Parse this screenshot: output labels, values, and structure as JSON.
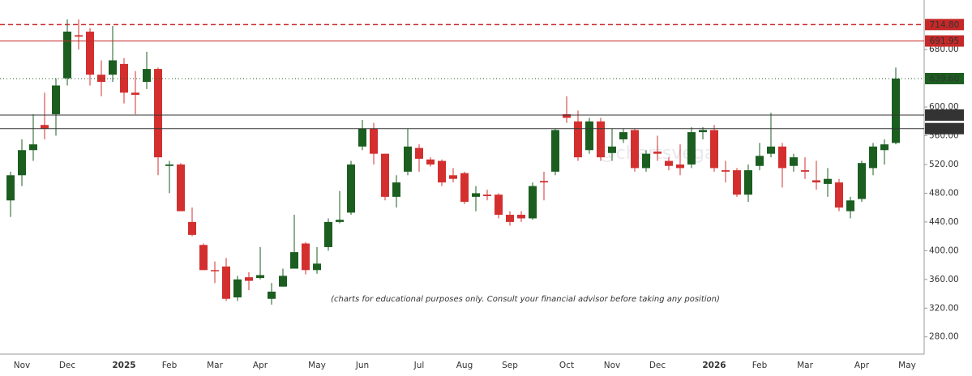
{
  "chart_data": {
    "type": "candlestick",
    "watermark": "@chartsvega",
    "annotation": "(charts for educational purposes only. Consult your financial advisor before taking any position)",
    "categories": [
      null,
      "Nov",
      null,
      null,
      null,
      "Dec",
      null,
      null,
      null,
      null,
      "2025",
      null,
      null,
      null,
      "Feb",
      null,
      null,
      null,
      "Mar",
      null,
      null,
      null,
      "Apr",
      null,
      null,
      null,
      null,
      "May",
      null,
      null,
      null,
      "Jun",
      null,
      null,
      null,
      null,
      "Jul",
      null,
      null,
      null,
      "Aug",
      null,
      null,
      null,
      "Sep",
      null,
      null,
      null,
      null,
      "Oct",
      null,
      null,
      null,
      "Nov",
      null,
      null,
      null,
      "Dec",
      null,
      null,
      null,
      null,
      "2026",
      null,
      null,
      null,
      "Feb",
      null,
      null,
      null,
      "Mar",
      null,
      null,
      null,
      null,
      "Apr",
      null,
      null,
      null,
      "May"
    ],
    "open": [
      470,
      505,
      540,
      575,
      590,
      640,
      700,
      705,
      645,
      645,
      660,
      620,
      635,
      653,
      518,
      520,
      440,
      408,
      373,
      378,
      335,
      363,
      362,
      333,
      350,
      375,
      410,
      373,
      405,
      440,
      453,
      545,
      570,
      535,
      475,
      510,
      543,
      527,
      525,
      505,
      508,
      475,
      478,
      478,
      450,
      450,
      445,
      497,
      510,
      590,
      580,
      540,
      580,
      536,
      555,
      568,
      515,
      538,
      525,
      520,
      520,
      565,
      568,
      512,
      512,
      478,
      518,
      535,
      545,
      518,
      512,
      498,
      493,
      495,
      455,
      472,
      515,
      540,
      550,
      null
    ],
    "high": [
      510,
      555,
      590,
      620,
      640,
      722,
      722,
      710,
      665,
      713,
      668,
      650,
      677,
      655,
      525,
      522,
      460,
      410,
      385,
      390,
      365,
      370,
      405,
      355,
      375,
      450,
      412,
      405,
      445,
      483,
      525,
      582,
      578,
      535,
      505,
      570,
      548,
      530,
      527,
      515,
      510,
      490,
      485,
      480,
      455,
      455,
      495,
      510,
      570,
      615,
      595,
      585,
      585,
      570,
      570,
      570,
      540,
      560,
      530,
      548,
      572,
      572,
      575,
      525,
      515,
      520,
      550,
      592,
      550,
      535,
      530,
      525,
      515,
      500,
      475,
      525,
      550,
      555,
      655,
      null
    ],
    "low": [
      447,
      490,
      525,
      555,
      560,
      630,
      680,
      630,
      615,
      635,
      605,
      590,
      625,
      505,
      480,
      455,
      420,
      373,
      355,
      330,
      330,
      345,
      360,
      325,
      350,
      375,
      367,
      368,
      400,
      438,
      450,
      540,
      520,
      470,
      460,
      505,
      510,
      517,
      490,
      495,
      465,
      455,
      470,
      445,
      435,
      440,
      443,
      470,
      505,
      578,
      525,
      535,
      525,
      525,
      550,
      510,
      510,
      525,
      512,
      505,
      515,
      555,
      510,
      495,
      475,
      468,
      512,
      530,
      488,
      510,
      500,
      485,
      475,
      455,
      445,
      468,
      505,
      520,
      548,
      null
    ],
    "close": [
      505,
      540,
      548,
      570,
      630,
      705,
      698,
      645,
      635,
      665,
      620,
      617,
      653,
      530,
      520,
      455,
      422,
      373,
      372,
      333,
      360,
      358,
      366,
      343,
      365,
      398,
      373,
      382,
      440,
      443,
      520,
      570,
      535,
      475,
      495,
      545,
      528,
      520,
      495,
      500,
      468,
      480,
      476,
      450,
      440,
      445,
      490,
      495,
      568,
      585,
      530,
      580,
      530,
      545,
      565,
      515,
      535,
      535,
      518,
      515,
      565,
      568,
      515,
      510,
      478,
      512,
      532,
      545,
      515,
      530,
      510,
      495,
      500,
      460,
      470,
      522,
      545,
      548,
      639.6,
      null
    ],
    "up_color": "#1b5e20",
    "down_color": "#d32f2f",
    "ylim": [
      256,
      749
    ],
    "yticks": [
      {
        "value": 280,
        "label": "280.00"
      },
      {
        "value": 320,
        "label": "320.00"
      },
      {
        "value": 360,
        "label": "360.00"
      },
      {
        "value": 400,
        "label": "400.00"
      },
      {
        "value": 440,
        "label": "440.00"
      },
      {
        "value": 480,
        "label": "480.00"
      },
      {
        "value": 520,
        "label": "520.00"
      },
      {
        "value": 560,
        "label": "560.00"
      },
      {
        "value": 600,
        "label": "600.00"
      },
      {
        "value": 680,
        "label": "680.00"
      }
    ],
    "levels": [
      {
        "value": 714.8,
        "label": "714.80",
        "color": "#c62828",
        "style": "dashed"
      },
      {
        "value": 691.95,
        "label": "691.95",
        "color": "#c62828",
        "style": "solid"
      },
      {
        "value": 639.6,
        "label": "639.60",
        "color": "#1b5e20",
        "style": "dotted"
      },
      {
        "value": 588.8,
        "label": "588.80",
        "color": "#333333",
        "style": "solid"
      },
      {
        "value": 569.95,
        "label": "569.95",
        "color": "#333333",
        "style": "solid"
      }
    ]
  }
}
